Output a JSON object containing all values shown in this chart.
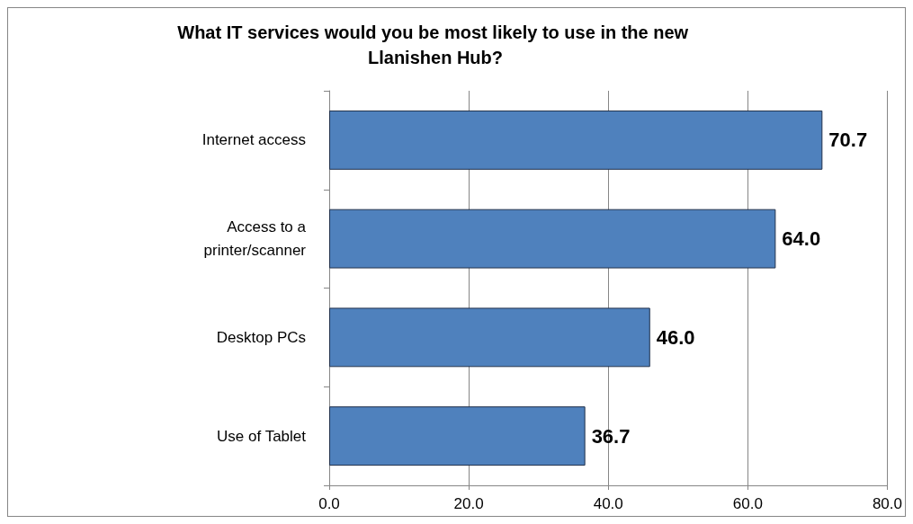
{
  "chart_data": {
    "type": "bar",
    "orientation": "horizontal",
    "title": "What IT services would you be most likely to use in the new Llanishen Hub?",
    "categories": [
      "Internet access",
      "Access to a\nprinter/scanner",
      "Desktop PCs",
      "Use of Tablet"
    ],
    "values": [
      70.7,
      64.0,
      46.0,
      36.7
    ],
    "value_labels": [
      "70.7",
      "64.0",
      "46.0",
      "36.7"
    ],
    "color": "#4f81bd",
    "xlim": [
      0,
      80
    ],
    "xticks": [
      {
        "value": 0,
        "label": "0.0"
      },
      {
        "value": 20,
        "label": "20.0"
      },
      {
        "value": 40,
        "label": "40.0"
      },
      {
        "value": 60,
        "label": "60.0"
      },
      {
        "value": 80,
        "label": "80.0"
      }
    ],
    "grid": "x"
  }
}
